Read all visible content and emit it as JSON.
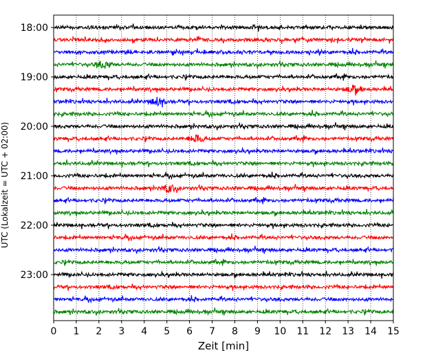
{
  "chart_data": {
    "type": "line",
    "title": "",
    "xlabel": "Zeit  [min]",
    "ylabel": "UTC (Lokalzeit = UTC + 02:00)",
    "xlim": [
      0,
      15
    ],
    "x_ticks": [
      "0",
      "1",
      "2",
      "3",
      "4",
      "5",
      "6",
      "7",
      "8",
      "9",
      "10",
      "11",
      "12",
      "13",
      "14",
      "15"
    ],
    "y_ticks": [
      "18:00",
      "19:00",
      "20:00",
      "21:00",
      "22:00",
      "23:00"
    ],
    "grid": "vertical dotted",
    "trace_interval_min": 15,
    "trace_colors": [
      "#000000",
      "#ff0000",
      "#0000ff",
      "#008000"
    ],
    "traces": [
      {
        "start": "18:00",
        "color": "#000000"
      },
      {
        "start": "18:15",
        "color": "#ff0000"
      },
      {
        "start": "18:30",
        "color": "#0000ff"
      },
      {
        "start": "18:45",
        "color": "#008000"
      },
      {
        "start": "19:00",
        "color": "#000000"
      },
      {
        "start": "19:15",
        "color": "#ff0000"
      },
      {
        "start": "19:30",
        "color": "#0000ff"
      },
      {
        "start": "19:45",
        "color": "#008000"
      },
      {
        "start": "20:00",
        "color": "#000000"
      },
      {
        "start": "20:15",
        "color": "#ff0000"
      },
      {
        "start": "20:30",
        "color": "#0000ff"
      },
      {
        "start": "20:45",
        "color": "#008000"
      },
      {
        "start": "21:00",
        "color": "#000000"
      },
      {
        "start": "21:15",
        "color": "#ff0000"
      },
      {
        "start": "21:30",
        "color": "#0000ff"
      },
      {
        "start": "21:45",
        "color": "#008000"
      },
      {
        "start": "22:00",
        "color": "#000000"
      },
      {
        "start": "22:15",
        "color": "#ff0000"
      },
      {
        "start": "22:30",
        "color": "#0000ff"
      },
      {
        "start": "22:45",
        "color": "#008000"
      },
      {
        "start": "23:00",
        "color": "#000000"
      },
      {
        "start": "23:15",
        "color": "#ff0000"
      },
      {
        "start": "23:30",
        "color": "#0000ff"
      },
      {
        "start": "23:45",
        "color": "#008000"
      }
    ],
    "bursts": [
      {
        "trace": "18:45",
        "minute": 2.2
      },
      {
        "trace": "19:15",
        "minute": 13.3
      },
      {
        "trace": "19:30",
        "minute": 4.6
      },
      {
        "trace": "20:15",
        "minute": 6.3
      },
      {
        "trace": "21:15",
        "minute": 5.1
      }
    ]
  }
}
